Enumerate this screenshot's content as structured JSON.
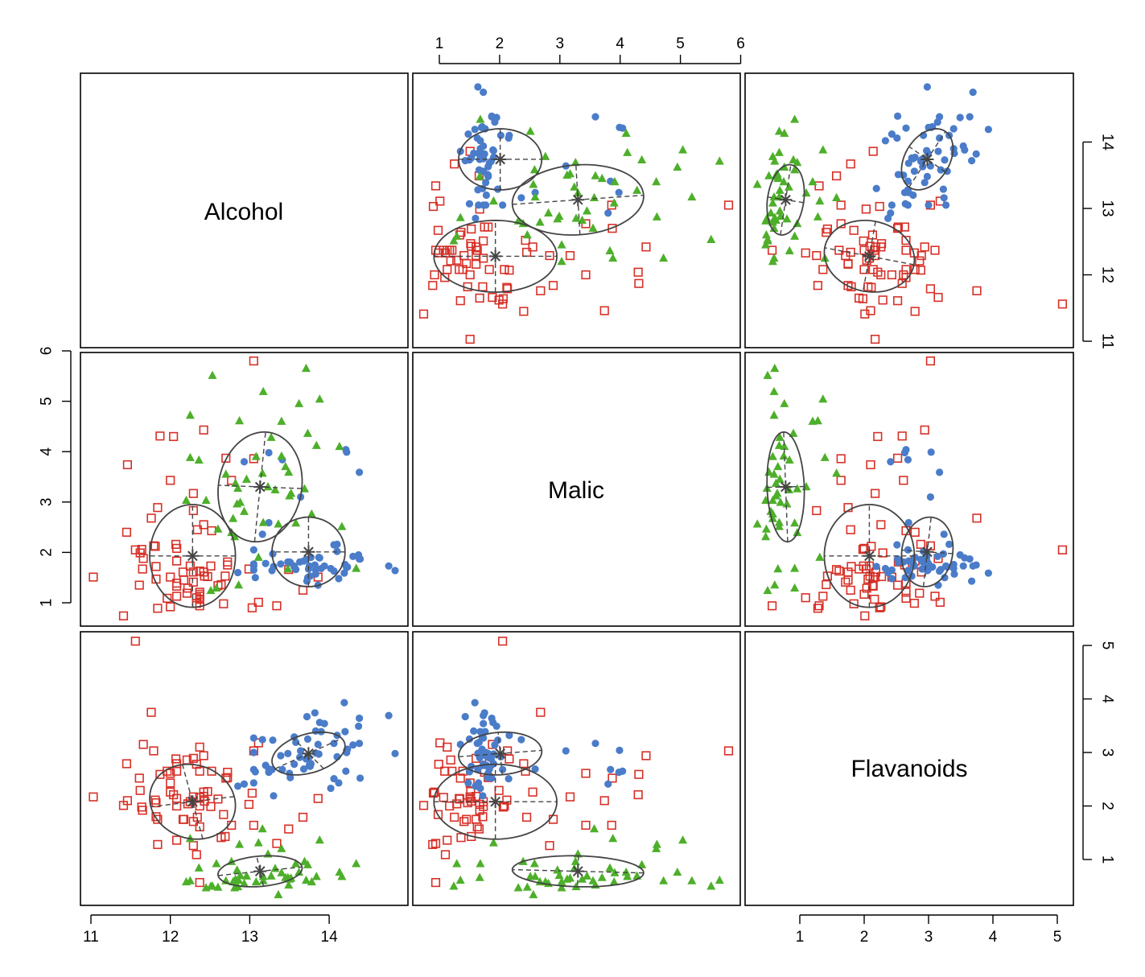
{
  "variables": [
    "Alcohol",
    "Malic",
    "Flavanoids"
  ],
  "colors": {
    "class1": "#4a7cc9",
    "class2": "#d73027",
    "class3": "#4daf2a",
    "ellipse": "#444444",
    "frame": "#000000"
  },
  "chart_data": {
    "type": "scatter",
    "subtype": "scatterplot-matrix with data ellipses",
    "grid": false,
    "axes": {
      "Alcohol": {
        "range": [
          11,
          14.8
        ],
        "ticks": [
          11,
          12,
          13,
          14
        ]
      },
      "Malic": {
        "range": [
          0.5,
          6
        ],
        "ticks": [
          1,
          2,
          3,
          4,
          5,
          6
        ]
      },
      "Flavanoids": {
        "range": [
          0.3,
          5.1
        ],
        "ticks": [
          1,
          2,
          3,
          4,
          5
        ]
      }
    },
    "tick_sides": {
      "top": "Malic",
      "bottom_left": "Alcohol",
      "bottom_right": "Flavanoids",
      "right_top": "Alcohol",
      "right_bottom": "Flavanoids",
      "left_middle": "Malic"
    },
    "series": [
      {
        "marker": "circle-filled",
        "color": "#4a7cc9",
        "centroid": {
          "Alcohol": 13.74,
          "Malic": 2.01,
          "Flavanoids": 2.98
        },
        "sd": {
          "Alcohol": 0.46,
          "Malic": 0.69,
          "Flavanoids": 0.4
        },
        "corr": {
          "Alcohol-Malic": 0.0,
          "Alcohol-Flavanoids": 0.35,
          "Malic-Flavanoids": 0.1
        },
        "points": [
          [
            14.23,
            1.71,
            3.06
          ],
          [
            13.2,
            1.78,
            2.76
          ],
          [
            13.16,
            2.36,
            3.24
          ],
          [
            14.37,
            1.95,
            3.49
          ],
          [
            13.24,
            2.59,
            2.69
          ],
          [
            14.2,
            1.76,
            3.39
          ],
          [
            14.39,
            1.87,
            2.52
          ],
          [
            14.06,
            2.15,
            2.51
          ],
          [
            14.83,
            1.64,
            2.98
          ],
          [
            13.86,
            1.35,
            3.15
          ],
          [
            14.1,
            2.16,
            3.32
          ],
          [
            14.12,
            1.48,
            2.43
          ],
          [
            13.75,
            1.73,
            2.76
          ],
          [
            14.75,
            1.73,
            3.69
          ],
          [
            14.38,
            1.87,
            3.64
          ],
          [
            13.63,
            1.81,
            2.91
          ],
          [
            14.3,
            1.92,
            3.14
          ],
          [
            13.83,
            1.57,
            3.4
          ],
          [
            14.19,
            1.59,
            3.93
          ],
          [
            13.64,
            3.1,
            3.03
          ],
          [
            14.06,
            1.63,
            3.17
          ],
          [
            12.93,
            3.8,
            2.41
          ],
          [
            13.71,
            1.86,
            2.88
          ],
          [
            12.85,
            1.6,
            2.37
          ],
          [
            13.5,
            1.81,
            2.61
          ],
          [
            13.05,
            2.05,
            2.68
          ],
          [
            13.39,
            1.77,
            2.94
          ],
          [
            13.3,
            1.72,
            2.19
          ],
          [
            13.87,
            1.9,
            2.97
          ],
          [
            14.02,
            1.68,
            2.33
          ],
          [
            13.73,
            1.5,
            3.25
          ],
          [
            13.58,
            1.66,
            3.19
          ],
          [
            13.68,
            1.83,
            2.69
          ],
          [
            13.76,
            1.53,
            2.74
          ],
          [
            13.51,
            1.8,
            2.53
          ],
          [
            13.48,
            1.81,
            2.98
          ],
          [
            13.28,
            1.64,
            2.68
          ],
          [
            13.05,
            1.65,
            2.43
          ],
          [
            13.07,
            1.5,
            2.64
          ],
          [
            14.22,
            3.99,
            3.04
          ],
          [
            13.56,
            1.71,
            3.29
          ],
          [
            13.41,
            3.84,
            2.68
          ],
          [
            13.88,
            1.89,
            3.56
          ],
          [
            13.24,
            3.98,
            2.63
          ],
          [
            13.05,
            1.77,
            3.0
          ],
          [
            14.21,
            4.04,
            2.65
          ],
          [
            14.38,
            3.59,
            3.17
          ],
          [
            13.9,
            1.68,
            3.39
          ],
          [
            14.1,
            2.02,
            2.92
          ],
          [
            13.94,
            1.73,
            3.54
          ],
          [
            13.05,
            1.73,
            3.27
          ],
          [
            13.83,
            1.65,
            2.99
          ],
          [
            13.82,
            1.75,
            3.74
          ],
          [
            13.77,
            1.9,
            2.79
          ],
          [
            13.74,
            1.67,
            2.9
          ],
          [
            13.56,
            1.73,
            2.78
          ],
          [
            14.22,
            1.7,
            3.0
          ],
          [
            13.29,
            1.97,
            3.23
          ],
          [
            13.72,
            1.43,
            3.67
          ]
        ]
      },
      {
        "marker": "square-open",
        "color": "#d73027",
        "centroid": {
          "Alcohol": 12.28,
          "Malic": 1.93,
          "Flavanoids": 2.08
        },
        "sd": {
          "Alcohol": 0.54,
          "Malic": 1.02,
          "Flavanoids": 0.7
        },
        "corr": {
          "Alcohol-Malic": 0.0,
          "Alcohol-Flavanoids": -0.1,
          "Malic-Flavanoids": 0.0
        },
        "points": [
          [
            12.37,
            0.94,
            0.57
          ],
          [
            12.33,
            1.1,
            1.09
          ],
          [
            12.64,
            1.36,
            1.41
          ],
          [
            13.67,
            1.25,
            1.79
          ],
          [
            12.37,
            1.13,
            3.1
          ],
          [
            12.17,
            1.45,
            1.75
          ],
          [
            12.37,
            1.21,
            2.65
          ],
          [
            13.11,
            1.01,
            3.18
          ],
          [
            12.37,
            1.17,
            2.0
          ],
          [
            13.34,
            0.94,
            1.3
          ],
          [
            12.21,
            1.19,
            2.86
          ],
          [
            12.29,
            1.61,
            2.89
          ],
          [
            13.86,
            1.51,
            2.14
          ],
          [
            13.49,
            1.66,
            1.57
          ],
          [
            12.99,
            1.67,
            2.03
          ],
          [
            11.96,
            1.09,
            2.65
          ],
          [
            11.66,
            1.88,
            3.15
          ],
          [
            13.03,
            0.9,
            2.24
          ],
          [
            11.84,
            2.89,
            1.75
          ],
          [
            12.33,
            0.99,
            2.78
          ],
          [
            12.7,
            3.87,
            2.52
          ],
          [
            12.0,
            0.92,
            2.26
          ],
          [
            12.72,
            1.81,
            2.53
          ],
          [
            12.08,
            1.13,
            1.36
          ],
          [
            13.05,
            3.86,
            1.64
          ],
          [
            11.84,
            0.89,
            1.28
          ],
          [
            12.67,
            0.98,
            1.84
          ],
          [
            12.16,
            1.61,
            1.75
          ],
          [
            11.65,
            1.67,
            1.92
          ],
          [
            11.64,
            2.06,
            1.98
          ],
          [
            12.08,
            1.33,
            2.14
          ],
          [
            12.08,
            1.83,
            2.79
          ],
          [
            12.0,
            1.51,
            2.43
          ],
          [
            12.69,
            1.53,
            1.43
          ],
          [
            12.29,
            2.83,
            1.26
          ],
          [
            11.62,
            1.99,
            2.29
          ],
          [
            12.47,
            1.52,
            2.27
          ],
          [
            11.81,
            2.12,
            2.11
          ],
          [
            12.29,
            1.41,
            1.71
          ],
          [
            12.37,
            1.07,
            2.16
          ],
          [
            12.29,
            3.17,
            2.17
          ],
          [
            12.08,
            2.08,
            2.0
          ],
          [
            12.6,
            1.34,
            2.13
          ],
          [
            12.34,
            2.45,
            1.79
          ],
          [
            11.82,
            1.72,
            1.8
          ],
          [
            12.51,
            1.73,
            1.99
          ],
          [
            12.42,
            2.55,
            2.26
          ],
          [
            12.25,
            1.73,
            2.08
          ],
          [
            12.72,
            1.75,
            2.63
          ],
          [
            12.22,
            1.29,
            2.04
          ],
          [
            11.61,
            1.35,
            2.52
          ],
          [
            11.46,
            3.74,
            2.1
          ],
          [
            12.52,
            2.43,
            2.65
          ],
          [
            11.76,
            2.68,
            3.75
          ],
          [
            11.41,
            0.74,
            2.01
          ],
          [
            12.08,
            1.39,
            2.65
          ],
          [
            11.03,
            1.51,
            2.17
          ],
          [
            11.82,
            1.47,
            2.06
          ],
          [
            12.42,
            1.61,
            2.18
          ],
          [
            12.77,
            3.43,
            1.64
          ],
          [
            12.0,
            3.43,
            2.61
          ],
          [
            11.45,
            2.4,
            2.79
          ],
          [
            11.56,
            2.05,
            5.08
          ],
          [
            12.42,
            4.43,
            2.94
          ],
          [
            13.05,
            5.8,
            3.03
          ],
          [
            11.87,
            4.31,
            2.59
          ],
          [
            12.07,
            2.16,
            2.88
          ],
          [
            12.43,
            1.53,
            2.09
          ],
          [
            11.79,
            2.13,
            3.03
          ],
          [
            12.37,
            1.63,
            1.61
          ],
          [
            12.04,
            4.3,
            2.21
          ]
        ]
      },
      {
        "marker": "triangle-filled",
        "color": "#4daf2a",
        "centroid": {
          "Alcohol": 13.13,
          "Malic": 3.3,
          "Flavanoids": 0.78
        },
        "sd": {
          "Alcohol": 0.53,
          "Malic": 1.09,
          "Flavanoids": 0.29
        },
        "corr": {
          "Alcohol-Malic": 0.1,
          "Alcohol-Flavanoids": 0.2,
          "Malic-Flavanoids": -0.1
        },
        "points": [
          [
            12.86,
            1.35,
            0.61
          ],
          [
            12.88,
            2.99,
            0.7
          ],
          [
            12.81,
            2.31,
            0.47
          ],
          [
            12.7,
            3.55,
            0.6
          ],
          [
            12.51,
            1.24,
            0.5
          ],
          [
            12.6,
            2.46,
            0.48
          ],
          [
            12.25,
            4.72,
            0.6
          ],
          [
            12.53,
            5.51,
            0.5
          ],
          [
            13.49,
            3.59,
            0.52
          ],
          [
            12.84,
            2.96,
            0.8
          ],
          [
            12.93,
            2.81,
            0.55
          ],
          [
            13.36,
            2.56,
            0.34
          ],
          [
            13.52,
            3.17,
            0.65
          ],
          [
            13.62,
            4.95,
            0.76
          ],
          [
            12.25,
            3.88,
            1.39
          ],
          [
            13.16,
            3.57,
            1.57
          ],
          [
            13.88,
            5.04,
            1.36
          ],
          [
            12.87,
            4.61,
            1.28
          ],
          [
            13.32,
            3.24,
            0.83
          ],
          [
            13.08,
            3.9,
            0.58
          ],
          [
            13.5,
            3.12,
            0.63
          ],
          [
            12.79,
            2.67,
            0.58
          ],
          [
            13.11,
            1.9,
            1.31
          ],
          [
            13.23,
            3.3,
            1.1
          ],
          [
            12.58,
            1.29,
            0.92
          ],
          [
            13.17,
            5.19,
            0.6
          ],
          [
            13.84,
            4.12,
            0.68
          ],
          [
            12.45,
            3.03,
            0.47
          ],
          [
            14.34,
            1.68,
            0.92
          ],
          [
            13.48,
            1.67,
            0.66
          ],
          [
            12.36,
            3.83,
            0.84
          ],
          [
            13.69,
            3.26,
            0.96
          ],
          [
            12.85,
            3.27,
            0.49
          ],
          [
            12.96,
            3.45,
            0.69
          ],
          [
            13.78,
            2.76,
            0.58
          ],
          [
            13.73,
            4.36,
            0.9
          ],
          [
            13.45,
            3.7,
            0.66
          ],
          [
            12.82,
            3.37,
            0.63
          ],
          [
            13.58,
            2.58,
            0.92
          ],
          [
            13.4,
            4.6,
            1.2
          ],
          [
            12.2,
            3.03,
            0.58
          ],
          [
            12.77,
            2.39,
            0.96
          ],
          [
            14.16,
            2.51,
            0.68
          ],
          [
            13.71,
            5.65,
            0.61
          ],
          [
            13.4,
            3.91,
            0.75
          ],
          [
            13.27,
            4.28,
            0.69
          ],
          [
            13.17,
            2.59,
            0.68
          ],
          [
            14.13,
            4.1,
            0.76
          ]
        ]
      }
    ]
  }
}
